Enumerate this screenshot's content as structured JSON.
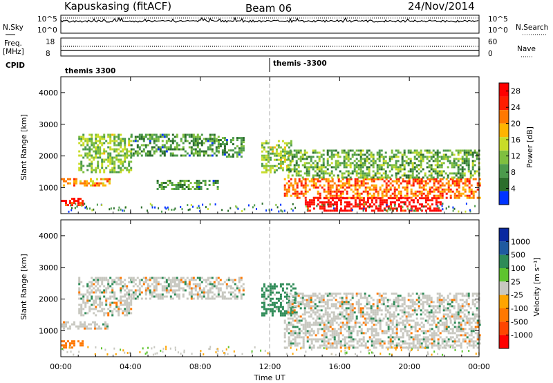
{
  "header": {
    "station": "Kapuskasing (fitACF)",
    "beam": "Beam 06",
    "date": "24/Nov/2014"
  },
  "side_labels": {
    "nsky": "N.Sky",
    "nsky_top": "10^5",
    "nsky_bottom": "10^0",
    "nsearch": "N.Search",
    "freq": "Freq.",
    "freq_unit": "[MHz]",
    "freq_top": "18",
    "freq_bottom": "8",
    "nave": "Nave",
    "nave_top": "60",
    "nave_bottom": "0",
    "cpid": "CPID"
  },
  "cpid_segments": [
    {
      "label": "themis 3300",
      "start_hour": 0
    },
    {
      "label": "themis -3300",
      "start_hour": 12
    }
  ],
  "colors": {
    "power": [
      "#0033ff",
      "#2b6e2b",
      "#4c9a4c",
      "#7fbf3f",
      "#c8dc28",
      "#ffb400",
      "#ff7800",
      "#ff1e00",
      "#ff0000"
    ],
    "velocity": [
      "#0a28a0",
      "#1f5aa0",
      "#2e8b57",
      "#5ec42e",
      "#c8c8c0",
      "#ffa500",
      "#ff7800",
      "#ff4500",
      "#ff0000"
    ]
  },
  "chart_data": [
    {
      "type": "heatmap",
      "title": "",
      "xlabel": "",
      "ylabel": "Slant Range [km]",
      "xlim": [
        0,
        24
      ],
      "ylim": [
        180,
        4500
      ],
      "x_ticks": [
        "00:00",
        "04:00",
        "08:00",
        "12:00",
        "16:00",
        "20:00",
        "00:00"
      ],
      "y_ticks": [
        1000,
        2000,
        3000,
        4000
      ],
      "colorbar": {
        "label": "Power [dB]",
        "ticks": [
          4,
          8,
          12,
          16,
          20,
          24,
          28
        ],
        "range": [
          0,
          30
        ]
      },
      "scatter_bands": [
        {
          "start_hour": 0.0,
          "end_hour": 1.3,
          "range_km": [
            480,
            680
          ],
          "power_db": 26
        },
        {
          "start_hour": 0.0,
          "end_hour": 2.8,
          "range_km": [
            1050,
            1300
          ],
          "power_db": 20
        },
        {
          "start_hour": 1.0,
          "end_hour": 4.0,
          "range_km": [
            1500,
            2700
          ],
          "power_db": 12
        },
        {
          "start_hour": 4.0,
          "end_hour": 9.0,
          "range_km": [
            2000,
            2700
          ],
          "power_db": 8
        },
        {
          "start_hour": 9.0,
          "end_hour": 10.5,
          "range_km": [
            2000,
            2600
          ],
          "power_db": 8
        },
        {
          "start_hour": 5.5,
          "end_hour": 9.0,
          "range_km": [
            950,
            1250
          ],
          "power_db": 8
        },
        {
          "start_hour": 11.5,
          "end_hour": 13.2,
          "range_km": [
            1500,
            2500
          ],
          "power_db": 12
        },
        {
          "start_hour": 12.8,
          "end_hour": 24.0,
          "range_km": [
            650,
            1300
          ],
          "power_db": 22
        },
        {
          "start_hour": 14.0,
          "end_hour": 21.8,
          "range_km": [
            300,
            700
          ],
          "power_db": 28
        },
        {
          "start_hour": 13.0,
          "end_hour": 24.0,
          "range_km": [
            1300,
            2200
          ],
          "power_db": 10
        }
      ]
    },
    {
      "type": "heatmap",
      "title": "",
      "xlabel": "Time UT",
      "ylabel": "Slant Range [km]",
      "xlim": [
        0,
        24
      ],
      "ylim": [
        180,
        4500
      ],
      "x_ticks": [
        "00:00",
        "04:00",
        "08:00",
        "12:00",
        "16:00",
        "20:00",
        "00:00"
      ],
      "y_ticks": [
        1000,
        2000,
        3000,
        4000
      ],
      "colorbar": {
        "label": "Velocity [m s⁻¹]",
        "ticks": [
          1000,
          500,
          100,
          25,
          -25,
          -100,
          -500,
          -1000
        ]
      },
      "scatter_bands": [
        {
          "start_hour": 0.0,
          "end_hour": 1.3,
          "range_km": [
            480,
            700
          ],
          "velocity": -300
        },
        {
          "start_hour": 0.0,
          "end_hour": 2.8,
          "range_km": [
            1050,
            1300
          ],
          "velocity": 0
        },
        {
          "start_hour": 1.0,
          "end_hour": 4.0,
          "range_km": [
            1500,
            2700
          ],
          "velocity": 0
        },
        {
          "start_hour": 4.0,
          "end_hour": 10.5,
          "range_km": [
            2000,
            2700
          ],
          "velocity": 0
        },
        {
          "start_hour": 11.5,
          "end_hour": 13.5,
          "range_km": [
            1500,
            2500
          ],
          "velocity": 150
        },
        {
          "start_hour": 12.8,
          "end_hour": 24.0,
          "range_km": [
            450,
            1350
          ],
          "velocity": 0
        },
        {
          "start_hour": 13.0,
          "end_hour": 24.0,
          "range_km": [
            1400,
            2200
          ],
          "velocity": 0
        }
      ]
    }
  ]
}
